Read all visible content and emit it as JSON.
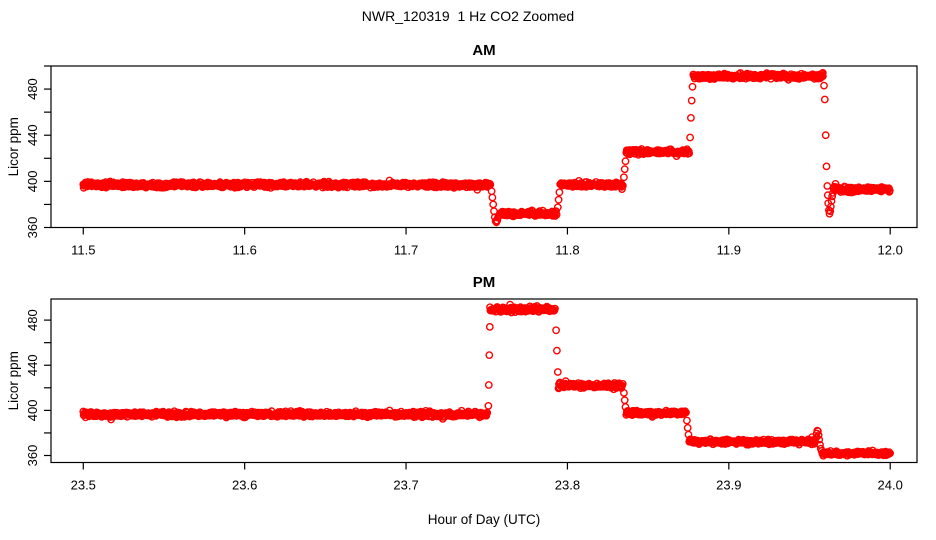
{
  "title": "NWR_120319  1 Hz CO2 Zoomed",
  "xlabel": "Hour of Day (UTC)",
  "point_color": "#FF0000",
  "axis_color": "#000000",
  "chart_data": {
    "type": "scatter",
    "marker": "open-circle",
    "marker_radius_px": 3.2,
    "sample_interval_hours": 0.000277778,
    "panels": [
      {
        "title": "AM",
        "ylabel": "Licor ppm",
        "xlim": [
          11.48,
          12.0166
        ],
        "ylim": [
          360,
          500
        ],
        "xticks": [
          11.5,
          11.6,
          11.7,
          11.8,
          11.9,
          12.0
        ],
        "yticks": [
          360,
          380,
          400,
          420,
          440,
          460,
          480,
          500
        ],
        "ytick_labeled": [
          360,
          400,
          440,
          480
        ],
        "segments": [
          {
            "t0": 11.5,
            "t1": 11.7525,
            "ppm": 397,
            "noise": 1.1
          },
          {
            "t0": 11.758,
            "t1": 11.7935,
            "ppm": 372,
            "noise": 1.0
          },
          {
            "t0": 11.7955,
            "t1": 11.8345,
            "ppm": 397,
            "noise": 1.0
          },
          {
            "t0": 11.8365,
            "t1": 11.8755,
            "ppm": 425.5,
            "noise": 1.0
          },
          {
            "t0": 11.878,
            "t1": 11.9585,
            "ppm": 491,
            "noise": 1.1
          },
          {
            "t0": 11.965,
            "t1": 12.0,
            "ppm": 393,
            "noise": 1.0
          }
        ],
        "transitions": [
          [
            11.753,
            391.5
          ],
          [
            11.7535,
            386
          ],
          [
            11.754,
            380
          ],
          [
            11.7545,
            374
          ],
          [
            11.755,
            369
          ],
          [
            11.7555,
            365.5
          ],
          [
            11.756,
            364.5
          ],
          [
            11.7565,
            366
          ],
          [
            11.757,
            368.5
          ],
          [
            11.7575,
            370.5
          ],
          [
            11.794,
            377.5
          ],
          [
            11.7945,
            384
          ],
          [
            11.795,
            390.5
          ],
          [
            11.835,
            403.5
          ],
          [
            11.8355,
            410.5
          ],
          [
            11.836,
            417.5
          ],
          [
            11.876,
            438
          ],
          [
            11.8765,
            455
          ],
          [
            11.877,
            470
          ],
          [
            11.8775,
            482
          ],
          [
            11.9578,
            493.5
          ],
          [
            11.9582,
            494
          ],
          [
            11.959,
            483
          ],
          [
            11.9595,
            471
          ],
          [
            11.96,
            440
          ],
          [
            11.9605,
            413
          ],
          [
            11.961,
            396
          ],
          [
            11.9613,
            388
          ],
          [
            11.9616,
            381
          ],
          [
            11.962,
            375
          ],
          [
            11.9624,
            372
          ],
          [
            11.9628,
            374
          ],
          [
            11.9632,
            378
          ],
          [
            11.9636,
            383
          ],
          [
            11.964,
            387
          ],
          [
            11.9645,
            390
          ]
        ]
      },
      {
        "title": "PM",
        "ylabel": "Licor ppm",
        "xlim": [
          23.48,
          24.0166
        ],
        "ylim": [
          353.8,
          498.7
        ],
        "xticks": [
          23.5,
          23.6,
          23.7,
          23.8,
          23.9,
          24.0
        ],
        "yticks": [
          360,
          380,
          400,
          420,
          440,
          460,
          480
        ],
        "ytick_labeled": [
          360,
          400,
          440,
          480
        ],
        "segments": [
          {
            "t0": 23.5,
            "t1": 23.7505,
            "ppm": 396.5,
            "noise": 1.1
          },
          {
            "t0": 23.752,
            "t1": 23.7925,
            "ppm": 489.5,
            "noise": 1.1
          },
          {
            "t0": 23.7945,
            "t1": 23.8345,
            "ppm": 422,
            "noise": 1.0
          },
          {
            "t0": 23.8365,
            "t1": 23.8735,
            "ppm": 397.5,
            "noise": 1.0
          },
          {
            "t0": 23.8755,
            "t1": 23.9535,
            "ppm": 372,
            "noise": 1.0
          },
          {
            "t0": 23.958,
            "t1": 24.0,
            "ppm": 362,
            "noise": 0.9
          }
        ],
        "transitions": [
          [
            23.751,
            404
          ],
          [
            23.7513,
            422.5
          ],
          [
            23.7516,
            449
          ],
          [
            23.7519,
            474
          ],
          [
            23.793,
            471
          ],
          [
            23.7935,
            453
          ],
          [
            23.794,
            434
          ],
          [
            23.835,
            415.5
          ],
          [
            23.8355,
            409
          ],
          [
            23.836,
            403
          ],
          [
            23.874,
            391
          ],
          [
            23.8745,
            384.5
          ],
          [
            23.875,
            378.5
          ],
          [
            23.954,
            375.5
          ],
          [
            23.9544,
            379.5
          ],
          [
            23.9548,
            382
          ],
          [
            23.9552,
            381.5
          ],
          [
            23.9556,
            378
          ],
          [
            23.956,
            374
          ],
          [
            23.9565,
            369.5
          ],
          [
            23.957,
            366
          ],
          [
            23.9575,
            364
          ]
        ]
      }
    ]
  }
}
